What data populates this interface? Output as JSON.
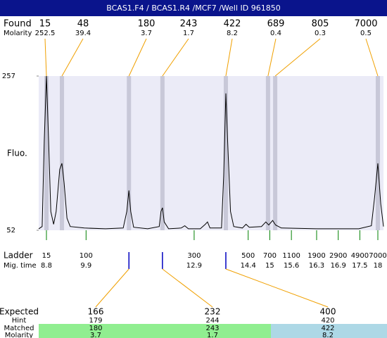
{
  "chart_data": {
    "type": "electropherogram",
    "title": "BCAS1.F4 / BCAS1.R4 /MCF7 /Well ID 961850",
    "found": {
      "label": "Found",
      "molarity_label": "Molarity",
      "sizes": [
        15,
        48,
        180,
        243,
        422,
        689,
        805,
        7000
      ],
      "molarity": [
        252.5,
        39.4,
        3.7,
        1.7,
        8.2,
        0.4,
        0.3,
        0.5
      ],
      "times": [
        8.8,
        9.23,
        11.09,
        12.02,
        13.78,
        14.95,
        15.15,
        18
      ],
      "color": "#f0a000",
      "band_color": "#c8c8d8"
    },
    "ylabel": "Fluo.",
    "ylim": [
      52,
      257
    ],
    "yticks": [
      52,
      257
    ],
    "xlim": [
      8.585,
      18.156
    ],
    "background": "#ebebf7",
    "trace": {
      "color": "#000000",
      "x": [
        8.585,
        8.68,
        8.74,
        8.8,
        8.86,
        8.92,
        9.0,
        9.07,
        9.17,
        9.23,
        9.29,
        9.37,
        9.46,
        9.85,
        10.44,
        10.93,
        11.03,
        11.09,
        11.14,
        11.22,
        11.61,
        11.93,
        11.98,
        12.02,
        12.07,
        12.19,
        12.54,
        12.64,
        12.74,
        13.07,
        13.21,
        13.27,
        13.34,
        13.66,
        13.72,
        13.78,
        13.83,
        13.91,
        14.0,
        14.24,
        14.34,
        14.43,
        14.77,
        14.89,
        14.97,
        15.08,
        15.16,
        15.32,
        16.3,
        17.47,
        17.82,
        17.91,
        18.0,
        18.08,
        18.156
      ],
      "values": [
        54,
        57,
        171,
        257,
        171,
        77,
        60,
        77,
        133,
        141,
        115,
        68,
        57,
        55,
        54,
        55,
        77,
        105,
        77,
        56,
        54,
        57,
        77,
        82,
        63,
        54,
        55,
        58,
        54,
        54,
        60,
        63,
        55,
        55,
        124,
        234,
        171,
        77,
        57,
        55,
        60,
        56,
        57,
        63,
        59,
        65,
        59,
        55,
        54,
        54,
        58,
        96,
        141,
        87,
        57
      ]
    },
    "ladder": {
      "label": "Ladder",
      "time_label": "Mig. time",
      "sizes": [
        15,
        100,
        300,
        500,
        700,
        1100,
        1900,
        2900,
        4900,
        7000
      ],
      "times": [
        8.8,
        9.9,
        12.9,
        14.4,
        15,
        15.6,
        16.3,
        16.9,
        17.5,
        18
      ],
      "color": "#008000"
    },
    "expected": {
      "label": "Expected",
      "hint_label": "Hint",
      "matched_label": "Matched",
      "molarity_label": "Molarity",
      "values": [
        166,
        232,
        400
      ],
      "hint": [
        179,
        244,
        420
      ],
      "matched": [
        180,
        243,
        422
      ],
      "molarity": [
        3.7,
        1.7,
        8.2
      ],
      "colors": [
        "#90ee90",
        "#90ee90",
        "#add8e6"
      ],
      "marker_color": "#0000c0"
    }
  }
}
